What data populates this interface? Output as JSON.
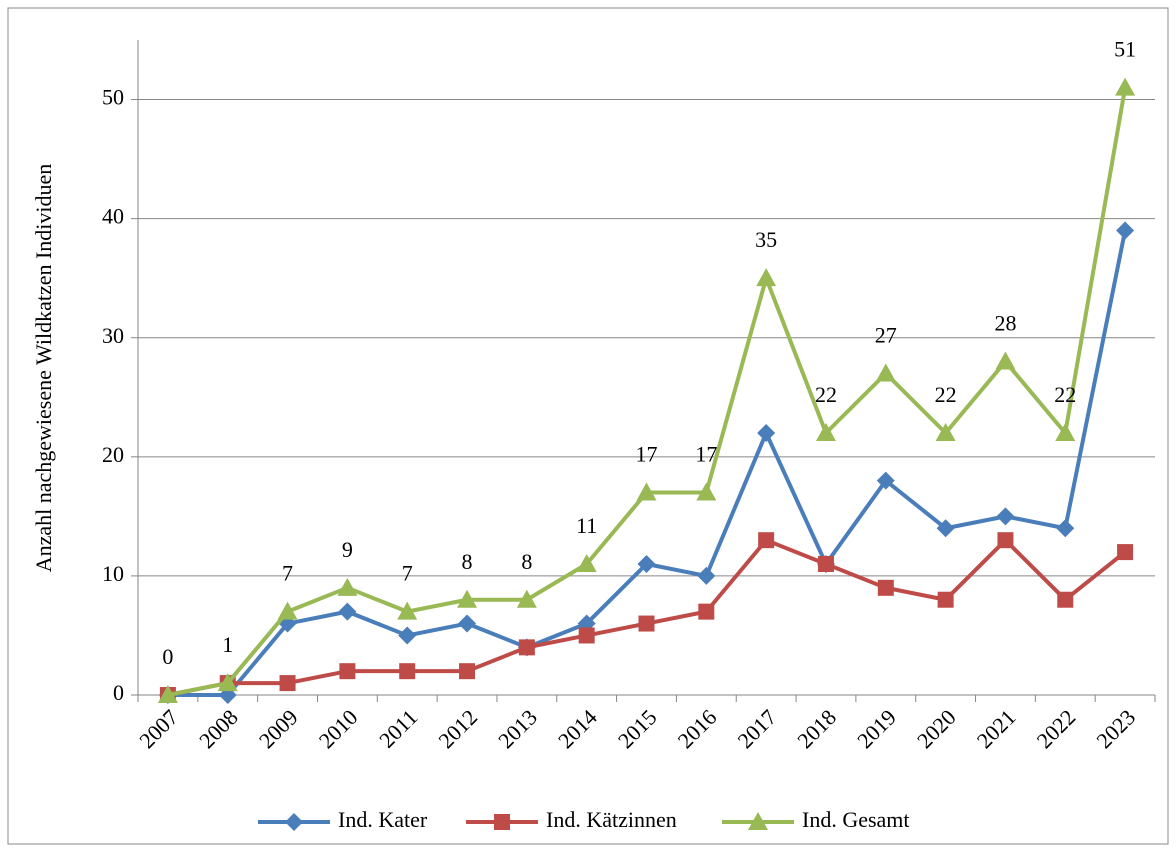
{
  "chart_data": {
    "type": "line",
    "y_label": "Anzahl nachgewiesene Wildkatzen Individuen",
    "categories": [
      "2007",
      "2008",
      "2009",
      "2010",
      "2011",
      "2012",
      "2013",
      "2014",
      "2015",
      "2016",
      "2017",
      "2018",
      "2019",
      "2020",
      "2021",
      "2022",
      "2023"
    ],
    "series": [
      {
        "name": "Ind. Kater",
        "color": "#4a7ebb",
        "marker": "diamond",
        "values": [
          0,
          0,
          6,
          7,
          5,
          6,
          4,
          6,
          11,
          10,
          22,
          11,
          18,
          14,
          15,
          14,
          39
        ]
      },
      {
        "name": "Ind. Kätzinnen",
        "color": "#be4b48",
        "marker": "square",
        "values": [
          0,
          1,
          1,
          2,
          2,
          2,
          4,
          5,
          6,
          7,
          13,
          11,
          9,
          8,
          13,
          8,
          12
        ]
      },
      {
        "name": "Ind. Gesamt",
        "color": "#98b954",
        "marker": "triangle",
        "values": [
          0,
          1,
          7,
          9,
          7,
          8,
          8,
          11,
          17,
          17,
          35,
          22,
          27,
          22,
          28,
          22,
          51
        ],
        "data_labels": true
      }
    ],
    "ylim": [
      0,
      55
    ],
    "yticks": [
      0,
      10,
      20,
      30,
      40,
      50
    ],
    "grid": true,
    "legend": "bottom"
  }
}
